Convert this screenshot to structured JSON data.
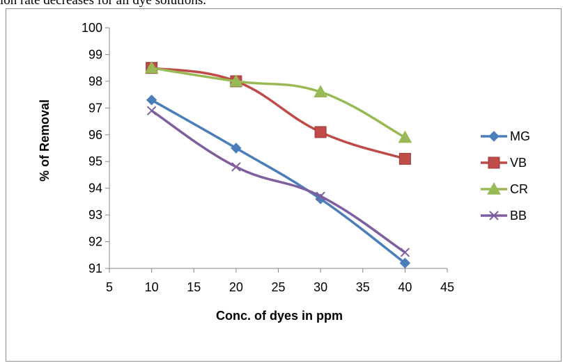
{
  "caption": "ion rate decreases for all dye solutions.",
  "chart_data": {
    "type": "line",
    "title": "",
    "xlabel": "Conc. of dyes in ppm",
    "ylabel": "% of Removal",
    "xlim": [
      5,
      45
    ],
    "ylim": [
      91,
      100
    ],
    "xticks": [
      5,
      10,
      15,
      20,
      25,
      30,
      35,
      40,
      45
    ],
    "yticks": [
      91,
      92,
      93,
      94,
      95,
      96,
      97,
      98,
      99,
      100
    ],
    "legend_position": "right",
    "grid": false,
    "x": [
      10,
      20,
      30,
      40
    ],
    "series": [
      {
        "name": "MG",
        "values": [
          97.3,
          95.5,
          93.6,
          91.2
        ],
        "color": "#4a7ebb",
        "marker": "diamond"
      },
      {
        "name": "VB",
        "values": [
          98.5,
          98.0,
          96.1,
          95.1
        ],
        "color": "#be4b48",
        "marker": "square"
      },
      {
        "name": "CR",
        "values": [
          98.5,
          98.0,
          97.6,
          95.9
        ],
        "color": "#98b954",
        "marker": "triangle"
      },
      {
        "name": "BB",
        "values": [
          96.9,
          94.8,
          93.7,
          91.6
        ],
        "color": "#7d5fa0",
        "marker": "x"
      }
    ]
  }
}
